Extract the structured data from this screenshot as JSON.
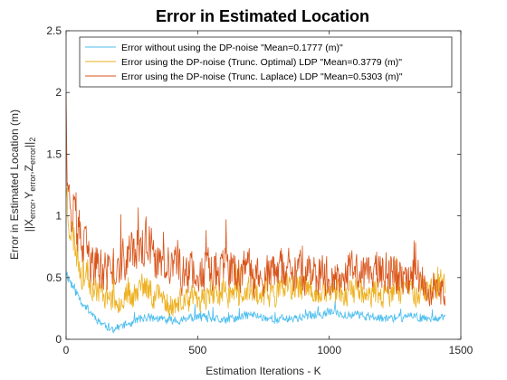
{
  "chart_data": {
    "type": "line",
    "title": "Error in Estimated Location",
    "xlabel": "Estimation Iterations - K",
    "ylabel_line1": "Error in Estimated Location (m)",
    "ylabel_line2": "||X",
    "ylabel_sub1": "error",
    "ylabel_mid1": ",Y",
    "ylabel_sub2": "error",
    "ylabel_mid2": ",Z",
    "ylabel_sub3": "error",
    "ylabel_tail": "||",
    "ylabel_sub4": "2",
    "xlim": [
      0,
      1500
    ],
    "ylim": [
      0,
      2.5
    ],
    "xticks": [
      0,
      500,
      1000,
      1500
    ],
    "xtick_labels": [
      "0",
      "500",
      "1000",
      "1500"
    ],
    "yticks": [
      0,
      0.5,
      1,
      1.5,
      2,
      2.5
    ],
    "ytick_labels": [
      "0",
      "0.5",
      "1",
      "1.5",
      "2",
      "2.5"
    ],
    "grid": false,
    "legend_position": "top-right",
    "x_max_index": 1440,
    "series": [
      {
        "name": "Error without using the DP-noise \"Mean=0.1777 (m)\"",
        "color": "#4DBEEE",
        "mean": 0.1777,
        "profile": [
          [
            0,
            0.55
          ],
          [
            20,
            0.45
          ],
          [
            60,
            0.3
          ],
          [
            120,
            0.16
          ],
          [
            170,
            0.08
          ],
          [
            230,
            0.12
          ],
          [
            300,
            0.18
          ],
          [
            400,
            0.15
          ],
          [
            500,
            0.18
          ],
          [
            600,
            0.15
          ],
          [
            700,
            0.2
          ],
          [
            800,
            0.16
          ],
          [
            900,
            0.18
          ],
          [
            1000,
            0.22
          ],
          [
            1100,
            0.2
          ],
          [
            1200,
            0.17
          ],
          [
            1300,
            0.18
          ],
          [
            1440,
            0.18
          ]
        ],
        "noise": 0.05,
        "seed": 11
      },
      {
        "name": "Error using the DP-noise (Trunc. Optimal) LDP \"Mean=0.3779 (m)\"",
        "color": "#EDB120",
        "mean": 0.3779,
        "profile": [
          [
            0,
            1.25
          ],
          [
            8,
            1.05
          ],
          [
            25,
            0.85
          ],
          [
            60,
            0.55
          ],
          [
            120,
            0.4
          ],
          [
            200,
            0.32
          ],
          [
            300,
            0.42
          ],
          [
            400,
            0.28
          ],
          [
            500,
            0.33
          ],
          [
            600,
            0.38
          ],
          [
            700,
            0.36
          ],
          [
            800,
            0.38
          ],
          [
            900,
            0.42
          ],
          [
            1000,
            0.38
          ],
          [
            1100,
            0.38
          ],
          [
            1200,
            0.36
          ],
          [
            1300,
            0.38
          ],
          [
            1440,
            0.45
          ]
        ],
        "noise": 0.13,
        "seed": 23
      },
      {
        "name": "Error using the DP-noise (Trunc. Laplace) LDP \"Mean=0.5303 (m)\"",
        "color": "#D95319",
        "mean": 0.5303,
        "profile": [
          [
            0,
            2.2
          ],
          [
            4,
            1.6
          ],
          [
            12,
            1.15
          ],
          [
            30,
            1.0
          ],
          [
            60,
            0.75
          ],
          [
            100,
            0.6
          ],
          [
            150,
            0.55
          ],
          [
            200,
            0.6
          ],
          [
            300,
            0.8
          ],
          [
            350,
            0.6
          ],
          [
            450,
            0.55
          ],
          [
            550,
            0.58
          ],
          [
            650,
            0.55
          ],
          [
            750,
            0.5
          ],
          [
            850,
            0.55
          ],
          [
            950,
            0.5
          ],
          [
            1050,
            0.55
          ],
          [
            1150,
            0.55
          ],
          [
            1250,
            0.55
          ],
          [
            1350,
            0.5
          ],
          [
            1440,
            0.4
          ]
        ],
        "noise": 0.17,
        "seed": 37
      }
    ]
  }
}
